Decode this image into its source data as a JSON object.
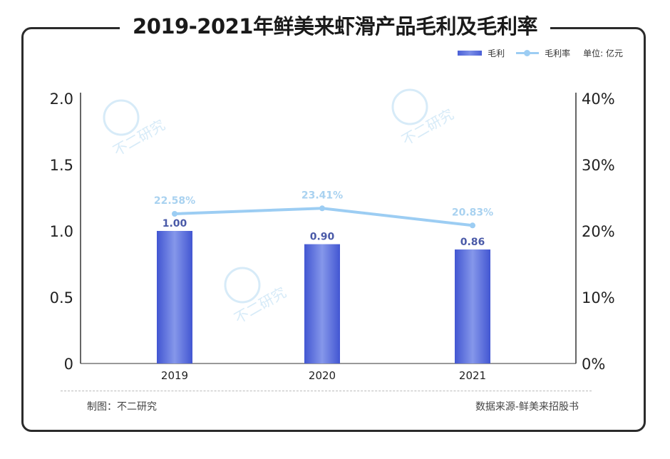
{
  "chart_data": {
    "type": "bar",
    "title": "2019-2021年鲜美来虾滑产品毛利及毛利率",
    "categories": [
      "2019",
      "2020",
      "2021"
    ],
    "series": [
      {
        "name": "毛利",
        "type": "bar",
        "axis": "left",
        "values": [
          1.0,
          0.9,
          0.86
        ],
        "labels": [
          "1.00",
          "0.90",
          "0.86"
        ],
        "color": "#4a5fd6"
      },
      {
        "name": "毛利率",
        "type": "line",
        "axis": "right",
        "values": [
          22.58,
          23.41,
          20.83
        ],
        "labels": [
          "22.58%",
          "23.41%",
          "20.83%"
        ],
        "color": "#9ccdf3"
      }
    ],
    "ylim": [
      0,
      2.0
    ],
    "yticks": [
      "0",
      "0.5",
      "1.0",
      "1.5",
      "2.0"
    ],
    "y2lim": [
      0,
      40
    ],
    "y2ticks": [
      "0%",
      "10%",
      "20%",
      "30%",
      "40%"
    ],
    "unit": "单位: 亿元",
    "grid": false,
    "legend": "top-right"
  },
  "footer": {
    "left": "制图：不二研究",
    "right": "数据来源-鲜美来招股书"
  },
  "watermark": "不二研究"
}
